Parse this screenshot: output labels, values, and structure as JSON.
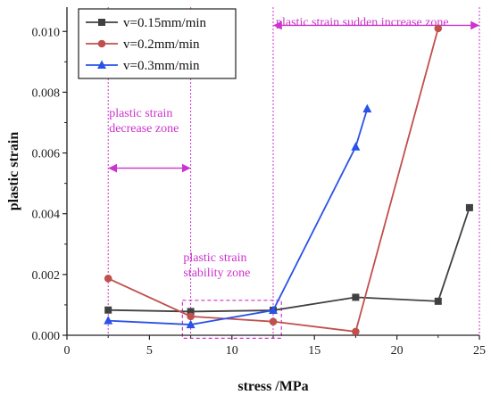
{
  "chart_data": {
    "type": "line",
    "title": "",
    "xlabel": "stress /MPa",
    "ylabel": "plastic strain",
    "xlim": [
      0,
      25
    ],
    "ylim": [
      0,
      0.0108
    ],
    "xticks": [
      0,
      5,
      10,
      15,
      20,
      25
    ],
    "xtick_labels": [
      "0",
      "5",
      "10",
      "15",
      "20",
      "25"
    ],
    "yticks": [
      0,
      0.002,
      0.004,
      0.006,
      0.008,
      0.01
    ],
    "ytick_labels": [
      "0.000",
      "0.002",
      "0.004",
      "0.006",
      "0.008",
      "0.010"
    ],
    "grid": false,
    "legend_position": "top-left",
    "series": [
      {
        "name": "v=0.15mm/min",
        "color": "#404040",
        "marker": "square",
        "points": [
          [
            2.5,
            0.00083
          ],
          [
            7.5,
            0.00078
          ],
          [
            12.5,
            0.00082
          ],
          [
            17.5,
            0.00125
          ],
          [
            22.5,
            0.00112
          ],
          [
            24.4,
            0.0042
          ]
        ]
      },
      {
        "name": "v=0.2mm/min",
        "color": "#c0504d",
        "marker": "circle",
        "points": [
          [
            2.5,
            0.00187
          ],
          [
            7.5,
            0.00062
          ],
          [
            12.5,
            0.00045
          ],
          [
            17.5,
            0.00012
          ],
          [
            22.5,
            0.0101
          ]
        ]
      },
      {
        "name": "v=0.3mm/min",
        "color": "#2a52e8",
        "marker": "triangle",
        "points": [
          [
            2.5,
            0.00048
          ],
          [
            7.5,
            0.00035
          ],
          [
            12.5,
            0.00082
          ],
          [
            17.5,
            0.0062
          ],
          [
            18.2,
            0.00745
          ]
        ]
      }
    ],
    "annotations": {
      "color": "#cc33cc",
      "vlines": [
        2.5,
        7.5,
        12.5,
        25
      ],
      "zones": [
        {
          "text": [
            "plastic strain",
            "decrease zone"
          ],
          "x_start": 2.5,
          "x_end": 7.5,
          "arrow_y": 0.0055,
          "label_y": 0.0071
        },
        {
          "text": [
            "plastic strain",
            "stability zone"
          ],
          "x_start": 7,
          "x_end": 13,
          "box_y": [
            -0.0001,
            0.00115
          ],
          "label_y": 0.00235
        },
        {
          "text": [
            "plastic strain sudden increase zone"
          ],
          "x_start": 12.5,
          "x_end": 25,
          "arrow_y": 0.0102,
          "label_y": 0.0106
        }
      ]
    }
  }
}
